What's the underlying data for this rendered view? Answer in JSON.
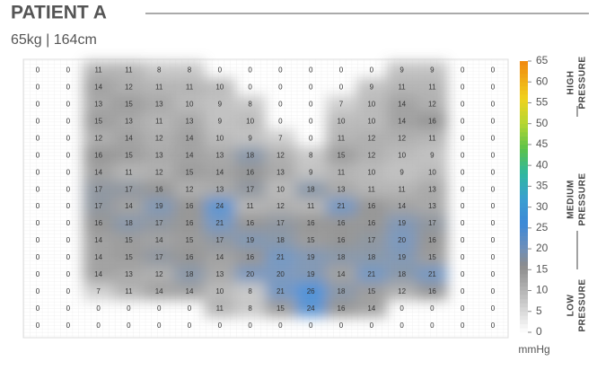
{
  "title": "PATIENT A",
  "subtitle": "65kg  |  164cm",
  "chart_data": {
    "type": "heatmap",
    "values": [
      [
        0,
        0,
        11,
        11,
        8,
        8,
        0,
        0,
        0,
        0,
        0,
        0,
        9,
        9,
        0,
        0
      ],
      [
        0,
        0,
        14,
        12,
        11,
        11,
        10,
        0,
        0,
        0,
        0,
        9,
        11,
        11,
        0,
        0
      ],
      [
        0,
        0,
        13,
        15,
        13,
        10,
        9,
        8,
        0,
        0,
        7,
        10,
        14,
        12,
        0,
        0
      ],
      [
        0,
        0,
        15,
        13,
        11,
        13,
        9,
        10,
        0,
        0,
        10,
        10,
        14,
        16,
        0,
        0
      ],
      [
        0,
        0,
        12,
        14,
        12,
        14,
        10,
        9,
        7,
        0,
        11,
        12,
        12,
        11,
        0,
        0
      ],
      [
        0,
        0,
        16,
        15,
        13,
        14,
        13,
        18,
        12,
        8,
        15,
        12,
        10,
        9,
        0,
        0
      ],
      [
        0,
        0,
        14,
        11,
        12,
        15,
        14,
        16,
        13,
        9,
        11,
        10,
        9,
        10,
        0,
        0
      ],
      [
        0,
        0,
        17,
        17,
        16,
        12,
        13,
        17,
        10,
        18,
        13,
        11,
        11,
        13,
        0,
        0
      ],
      [
        0,
        0,
        17,
        14,
        19,
        16,
        24,
        11,
        12,
        11,
        21,
        16,
        14,
        13,
        0,
        0
      ],
      [
        0,
        0,
        16,
        18,
        17,
        16,
        21,
        16,
        17,
        16,
        16,
        16,
        19,
        17,
        0,
        0
      ],
      [
        0,
        0,
        14,
        15,
        14,
        15,
        17,
        19,
        18,
        15,
        16,
        17,
        20,
        16,
        0,
        0
      ],
      [
        0,
        0,
        14,
        15,
        17,
        16,
        14,
        16,
        21,
        19,
        18,
        18,
        19,
        15,
        0,
        0
      ],
      [
        0,
        0,
        14,
        13,
        12,
        18,
        13,
        20,
        20,
        19,
        14,
        21,
        18,
        21,
        0,
        0
      ],
      [
        0,
        0,
        7,
        11,
        14,
        14,
        10,
        8,
        21,
        26,
        18,
        15,
        12,
        16,
        0,
        0
      ],
      [
        0,
        0,
        0,
        0,
        0,
        0,
        11,
        8,
        15,
        24,
        16,
        14,
        0,
        0,
        0,
        0
      ],
      [
        0,
        0,
        0,
        0,
        0,
        0,
        0,
        0,
        0,
        0,
        0,
        0,
        0,
        0,
        0,
        0
      ]
    ],
    "colorbar_lim": [
      0,
      65
    ],
    "colorbar_ticks": [
      0,
      5,
      10,
      15,
      20,
      25,
      30,
      35,
      40,
      45,
      50,
      55,
      60,
      65
    ],
    "colorbar_unit": "mmHg",
    "colorscale": [
      [
        0,
        "#ffffff"
      ],
      [
        10,
        "#b4b4b4"
      ],
      [
        16,
        "#8c8c8c"
      ],
      [
        20,
        "#6f8fb8"
      ],
      [
        26,
        "#3d88d6"
      ],
      [
        32,
        "#3a9fd0"
      ],
      [
        38,
        "#2fb7a0"
      ],
      [
        44,
        "#5cc24a"
      ],
      [
        50,
        "#b4d632"
      ],
      [
        56,
        "#f0d21e"
      ],
      [
        65,
        "#f0880f"
      ]
    ],
    "pressure_labels": {
      "high": [
        "HIGH",
        "PRESSURE"
      ],
      "medium": [
        "MEDIUM",
        "PRESSURE"
      ],
      "low": [
        "LOW",
        "PRESSURE"
      ]
    }
  }
}
